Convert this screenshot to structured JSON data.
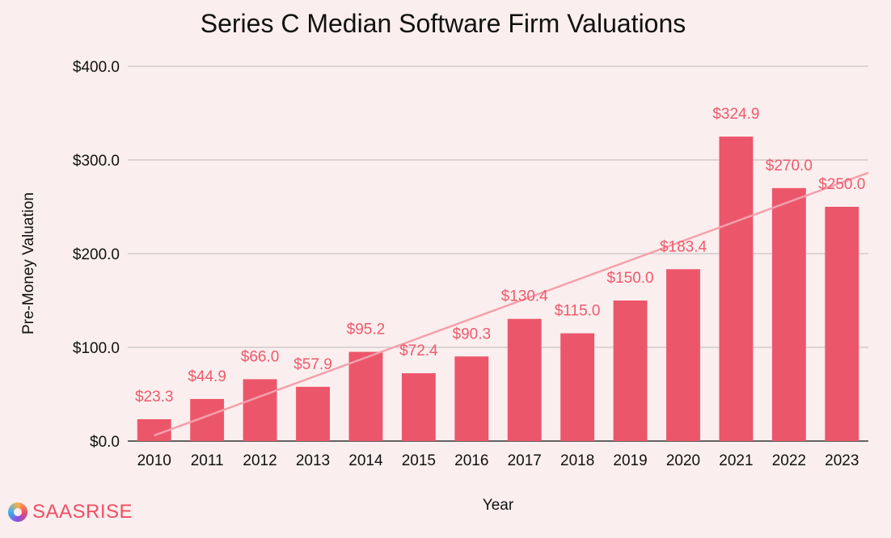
{
  "brand": {
    "name": "SAASRISE",
    "icon": "saasrise-logo-icon"
  },
  "chart_data": {
    "type": "bar",
    "title": "Series C Median Software Firm Valuations",
    "xlabel": "Year",
    "ylabel": "Pre-Money Valuation",
    "ylim": [
      0,
      400
    ],
    "yticks": [
      0,
      100,
      200,
      300,
      400
    ],
    "ytick_labels": [
      "$0.0",
      "$100.0",
      "$200.0",
      "$300.0",
      "$400.0"
    ],
    "grid": true,
    "categories": [
      "2010",
      "2011",
      "2012",
      "2013",
      "2014",
      "2015",
      "2016",
      "2017",
      "2018",
      "2019",
      "2020",
      "2021",
      "2022",
      "2023"
    ],
    "values": [
      23.3,
      44.9,
      66.0,
      57.9,
      95.2,
      72.4,
      90.3,
      130.4,
      115.0,
      150.0,
      183.4,
      324.9,
      270.0,
      250.0
    ],
    "data_labels": [
      "$23.3",
      "$44.9",
      "$66.0",
      "$57.9",
      "$95.2",
      "$72.4",
      "$90.3",
      "$130.4",
      "$115.0",
      "$150.0",
      "$183.4",
      "$324.9",
      "$270.0",
      "$250.0"
    ],
    "trendline": {
      "type": "linear",
      "from": {
        "x": "2010",
        "y": 6
      },
      "to": {
        "x": "2023",
        "y": 276
      }
    },
    "colors": {
      "bar": "#ec566b",
      "label": "#ee5a6c",
      "trend": "#f4a0ac",
      "background": "#fbeeee"
    }
  }
}
